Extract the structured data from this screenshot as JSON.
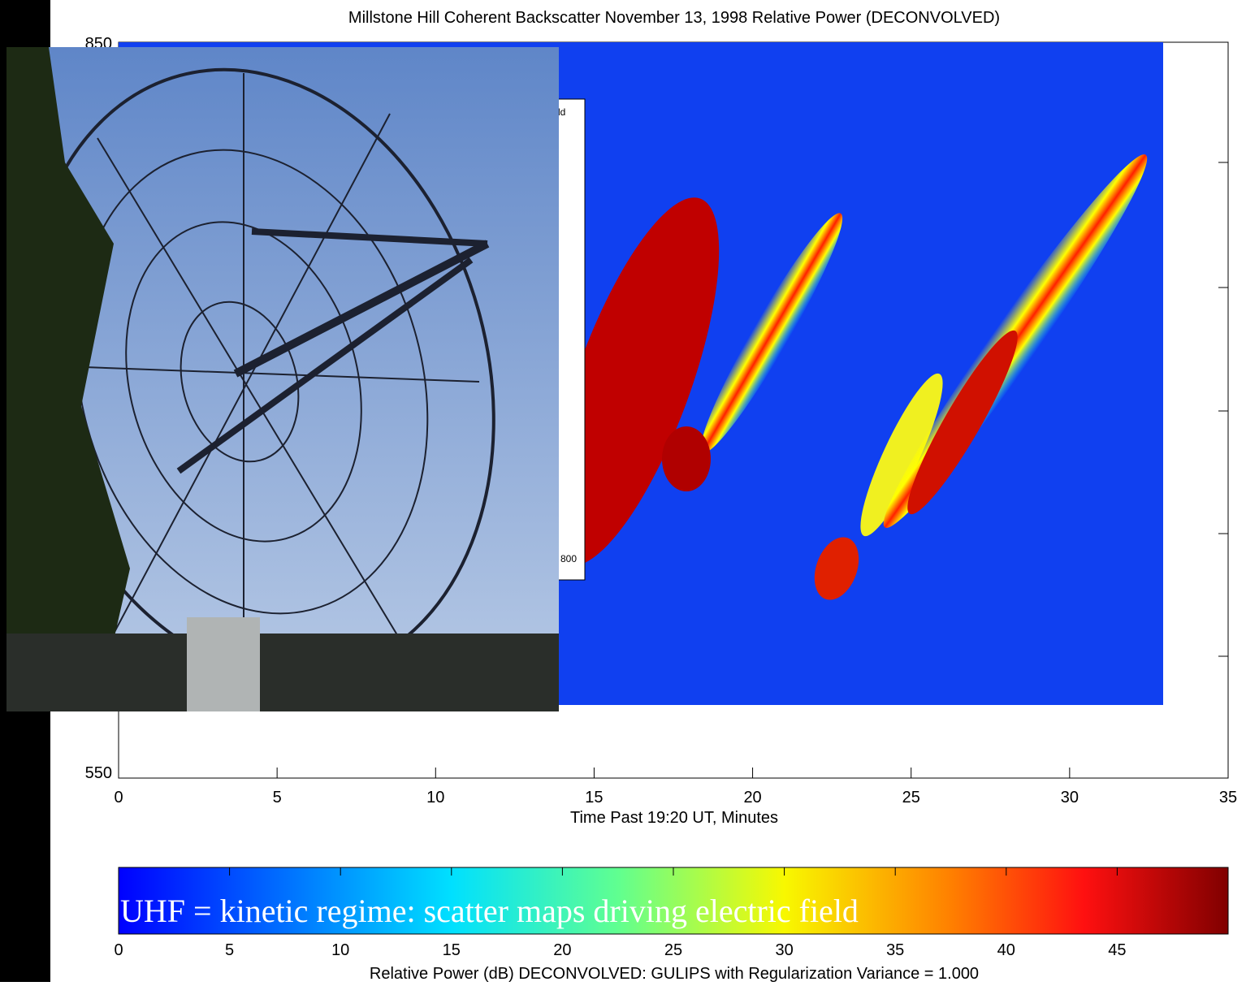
{
  "slide": {
    "plot_title": "Millstone Hill  Coherent Backscatter  November 13, 1998  Relative Power (DECONVOLVED)",
    "y_tick_labels": [
      "850",
      "550"
    ],
    "x_tick_labels": [
      "0",
      "5",
      "10",
      "15",
      "20",
      "25",
      "30",
      "35"
    ],
    "x_axis_label": "Time Past 19:20 UT, Minutes",
    "colorbar_tick_labels": [
      "0",
      "5",
      "10",
      "15",
      "20",
      "25",
      "30",
      "35",
      "40",
      "45"
    ],
    "colorbar_label": "Relative Power (dB)  DECONVOLVED: GULIPS with Regularization Variance = 1.000",
    "caption": "UHF = kinetic regime: scatter maps driving electric field",
    "inset_fragments": [
      "ld",
      "800"
    ]
  }
}
